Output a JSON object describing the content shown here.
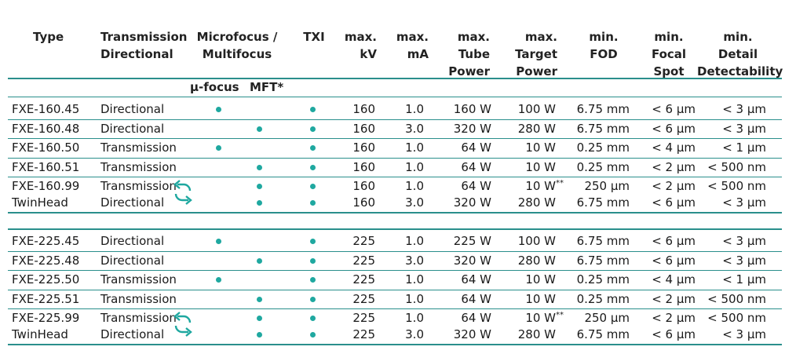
{
  "headers": {
    "type": [
      "Type"
    ],
    "mode": [
      "Transmission",
      "Directional"
    ],
    "focus": [
      "Microfocus /",
      "Multifocus"
    ],
    "txi": [
      "TXI"
    ],
    "kv": [
      "max.",
      "kV"
    ],
    "ma": [
      "max.",
      "mA"
    ],
    "tube": [
      "max.",
      "Tube",
      "Power"
    ],
    "target": [
      "max.",
      "Target",
      "Power"
    ],
    "fod": [
      "min.",
      "FOD"
    ],
    "spot": [
      "min.",
      "Focal",
      "Spot"
    ],
    "detail": [
      "min.",
      "Detail",
      "Detectability"
    ]
  },
  "subheaders": {
    "micro": "µ-focus",
    "mft": "MFT*"
  },
  "accent_color": "#2a8f8c",
  "dot_color": "#1fa8a0",
  "groups": [
    {
      "rows": [
        {
          "type": "FXE-160.45",
          "mode": "Directional",
          "micro": true,
          "mft": false,
          "txi": true,
          "kv": "160",
          "ma": "1.0",
          "tube": "160 W",
          "target": "100 W",
          "fod": "6.75 mm",
          "spot": "< 6 µm",
          "detail": "< 3 µm"
        },
        {
          "type": "FXE-160.48",
          "mode": "Directional",
          "micro": false,
          "mft": true,
          "txi": true,
          "kv": "160",
          "ma": "3.0",
          "tube": "320 W",
          "target": "280 W",
          "fod": "6.75 mm",
          "spot": "< 6 µm",
          "detail": "< 3 µm"
        },
        {
          "type": "FXE-160.50",
          "mode": "Transmission",
          "micro": true,
          "mft": false,
          "txi": true,
          "kv": "160",
          "ma": "1.0",
          "tube": "64 W",
          "target": "10 W",
          "fod": "0.25 mm",
          "spot": "< 4 µm",
          "detail": "< 1 µm"
        },
        {
          "type": "FXE-160.51",
          "mode": "Transmission",
          "micro": false,
          "mft": true,
          "txi": true,
          "kv": "160",
          "ma": "1.0",
          "tube": "64 W",
          "target": "10 W",
          "fod": "0.25 mm",
          "spot": "< 2 µm",
          "detail": "< 500 nm"
        }
      ],
      "twin": [
        {
          "type": "FXE-160.99",
          "mode": "Transmission",
          "micro": false,
          "mft": true,
          "txi": true,
          "kv": "160",
          "ma": "1.0",
          "tube": "64 W",
          "target": "10 W",
          "target_sup": "**",
          "fod": "250 µm",
          "spot": "< 2 µm",
          "detail": "< 500 nm"
        },
        {
          "type": "TwinHead",
          "mode": "Directional",
          "micro": false,
          "mft": true,
          "txi": true,
          "kv": "160",
          "ma": "3.0",
          "tube": "320 W",
          "target": "280 W",
          "target_sup": "",
          "fod": "6.75 mm",
          "spot": "< 6 µm",
          "detail": "< 3 µm"
        }
      ]
    },
    {
      "rows": [
        {
          "type": "FXE-225.45",
          "mode": "Directional",
          "micro": true,
          "mft": false,
          "txi": true,
          "kv": "225",
          "ma": "1.0",
          "tube": "225 W",
          "target": "100 W",
          "fod": "6.75 mm",
          "spot": "< 6 µm",
          "detail": "< 3 µm"
        },
        {
          "type": "FXE-225.48",
          "mode": "Directional",
          "micro": false,
          "mft": true,
          "txi": true,
          "kv": "225",
          "ma": "3.0",
          "tube": "320 W",
          "target": "280 W",
          "fod": "6.75 mm",
          "spot": "< 6 µm",
          "detail": "< 3 µm"
        },
        {
          "type": "FXE-225.50",
          "mode": "Transmission",
          "micro": true,
          "mft": false,
          "txi": true,
          "kv": "225",
          "ma": "1.0",
          "tube": "64 W",
          "target": "10 W",
          "fod": "0.25 mm",
          "spot": "< 4 µm",
          "detail": "< 1 µm"
        },
        {
          "type": "FXE-225.51",
          "mode": "Transmission",
          "micro": false,
          "mft": true,
          "txi": true,
          "kv": "225",
          "ma": "1.0",
          "tube": "64 W",
          "target": "10 W",
          "fod": "0.25 mm",
          "spot": "< 2 µm",
          "detail": "< 500 nm"
        }
      ],
      "twin": [
        {
          "type": "FXE-225.99",
          "mode": "Transmission",
          "micro": false,
          "mft": true,
          "txi": true,
          "kv": "225",
          "ma": "1.0",
          "tube": "64 W",
          "target": "10 W",
          "target_sup": "**",
          "fod": "250 µm",
          "spot": "< 2 µm",
          "detail": "< 500 nm"
        },
        {
          "type": "TwinHead",
          "mode": "Directional",
          "micro": false,
          "mft": true,
          "txi": true,
          "kv": "225",
          "ma": "3.0",
          "tube": "320 W",
          "target": "280 W",
          "target_sup": "",
          "fod": "6.75 mm",
          "spot": "< 6 µm",
          "detail": "< 3 µm"
        }
      ]
    }
  ]
}
